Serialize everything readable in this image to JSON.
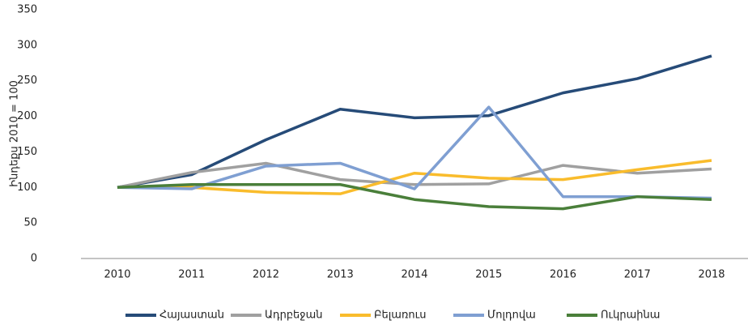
{
  "chart_data": {
    "type": "line",
    "y_label": "Ինդեքս 2010 = 100",
    "categories": [
      "2010",
      "2011",
      "2012",
      "2013",
      "2014",
      "2015",
      "2016",
      "2017",
      "2018"
    ],
    "ylim": [
      0,
      350
    ],
    "yticks": [
      0,
      50,
      100,
      150,
      200,
      250,
      300,
      350
    ],
    "series": [
      {
        "name": "Հայաստան",
        "color": "#264b78",
        "values": [
          100,
          118,
          167,
          210,
          198,
          201,
          233,
          253,
          285
        ]
      },
      {
        "name": "Ադրբեջան",
        "color": "#a0a0a0",
        "values": [
          100,
          121,
          134,
          111,
          104,
          105,
          131,
          120,
          126
        ]
      },
      {
        "name": "Բելառուս",
        "color": "#f9bc2c",
        "values": [
          100,
          100,
          93,
          91,
          120,
          113,
          111,
          125,
          138
        ]
      },
      {
        "name": "Մոլդովա",
        "color": "#7f9fd2",
        "values": [
          100,
          98,
          130,
          134,
          98,
          213,
          87,
          87,
          85
        ]
      },
      {
        "name": "Ուկրաինա",
        "color": "#4a7f3a",
        "values": [
          100,
          104,
          104,
          104,
          83,
          73,
          70,
          87,
          83
        ]
      }
    ]
  }
}
